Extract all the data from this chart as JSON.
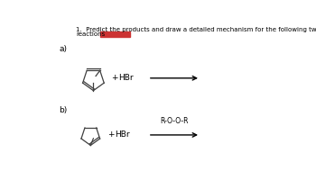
{
  "title_text": "1.  Predict the products and draw a detailed mechanism for the following two",
  "title_line2": "reactions",
  "redacted_color": "#cc3333",
  "label_a": "a)",
  "label_b": "b)",
  "hbr_text": "HBr",
  "plus_text": "+",
  "roor_text": "R-O-O-R",
  "bg_color": "#ffffff",
  "text_color": "#000000",
  "line_color": "#000000",
  "molecule_color": "#404040",
  "arrow_color": "#000000",
  "title_fontsize": 5.0,
  "label_fontsize": 6.5,
  "hbr_fontsize": 6.5,
  "roor_fontsize": 5.5
}
